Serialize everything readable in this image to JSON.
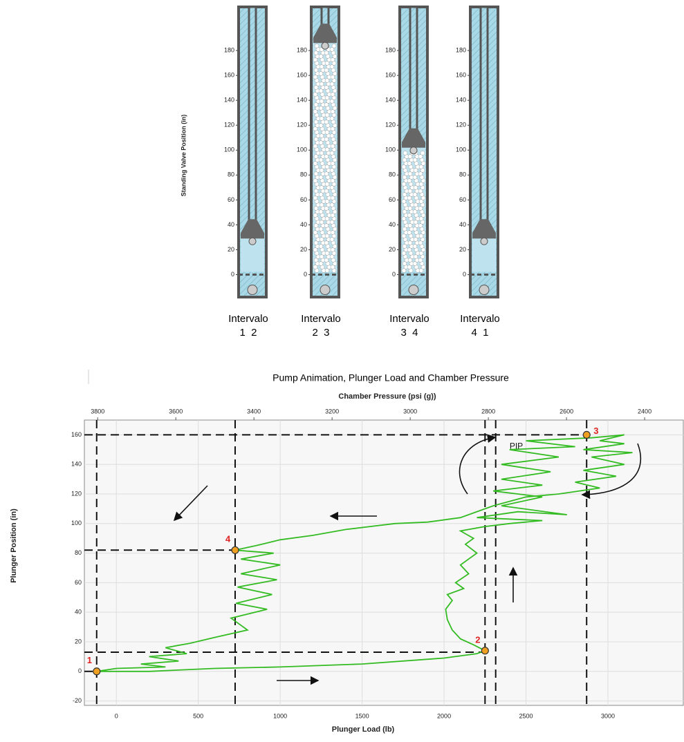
{
  "chart_data": [
    {
      "type": "pump",
      "y_label": "Standing Valve Position (in)",
      "ylim": [
        -18,
        215
      ],
      "yticks": [
        0,
        20,
        40,
        60,
        80,
        100,
        120,
        140,
        160,
        180
      ],
      "panels": [
        {
          "label": "Intervalo",
          "interval": "1  2",
          "plunger_position": 29,
          "gas": false
        },
        {
          "label": "Intervalo",
          "interval": "2  3",
          "plunger_position": 186,
          "gas": true
        },
        {
          "label": "Intervalo",
          "interval": "3  4",
          "plunger_position": 102,
          "gas": true
        },
        {
          "label": "Intervalo",
          "interval": "4  1",
          "plunger_position": 29,
          "gas": false
        }
      ]
    },
    {
      "type": "line",
      "title": "Pump Animation, Plunger Load and Chamber Pressure",
      "x_label": "Plunger Load (lb)",
      "x2_label": "Chamber Pressure (psi (g))",
      "y_label": "Plunger Position (in)",
      "xlim": [
        -195,
        3460
      ],
      "xticks": [
        0,
        500,
        1000,
        1500,
        2000,
        2500,
        3000
      ],
      "x2lim": [
        3834,
        2301
      ],
      "x2ticks": [
        3800,
        3600,
        3400,
        3200,
        3000,
        2800,
        2600,
        2400
      ],
      "ylim": [
        -23,
        170
      ],
      "yticks": [
        -20,
        0,
        20,
        40,
        60,
        80,
        100,
        120,
        140,
        160
      ],
      "grid": true,
      "series": [
        {
          "color": "#33bb22",
          "x": [
            -100,
            200,
            400,
            600,
            1000,
            1500,
            2000,
            2200,
            2250,
            2180,
            2100,
            2050,
            2020,
            2010,
            2050,
            2020,
            2120,
            2070,
            2150,
            2100,
            2200,
            2130,
            2180,
            2100,
            2250,
            2400,
            2600,
            2200,
            2450,
            2750,
            2350,
            2600,
            2300,
            2600,
            2350,
            2650,
            2350,
            2700,
            2400,
            2800,
            2500,
            2900,
            3100,
            2950,
            3100,
            2850,
            3150,
            2900,
            3100,
            2850,
            3050,
            2800,
            2950,
            2700,
            2500,
            2300,
            2100,
            1900,
            1700,
            1400,
            1200,
            1000,
            850,
            725,
            960,
            760,
            1000,
            760,
            980,
            740,
            950,
            730,
            920,
            700,
            800,
            600,
            450,
            300,
            430,
            200,
            380,
            150,
            300,
            0,
            -120
          ],
          "values": [
            0,
            0,
            1,
            2,
            3,
            5,
            9,
            12,
            14,
            18,
            22,
            28,
            35,
            42,
            48,
            52,
            56,
            60,
            66,
            72,
            80,
            86,
            90,
            95,
            98,
            100,
            102,
            104,
            108,
            106,
            112,
            118,
            122,
            126,
            130,
            135,
            140,
            145,
            150,
            152,
            156,
            158,
            160,
            156,
            154,
            150,
            148,
            145,
            140,
            136,
            132,
            128,
            124,
            120,
            118,
            112,
            104,
            101,
            100,
            96,
            92,
            89,
            85,
            82,
            80,
            76,
            72,
            66,
            62,
            57,
            52,
            46,
            42,
            36,
            28,
            23,
            19,
            16,
            12,
            10,
            7,
            5,
            3,
            2,
            0
          ]
        }
      ],
      "points": {
        "labels": [
          "1",
          "2",
          "3",
          "4"
        ],
        "x": [
          -120,
          2250,
          2870,
          725
        ],
        "values": [
          0,
          14,
          160,
          82
        ],
        "color": "#f0a020",
        "label_color": "#e02020"
      },
      "vlines": [
        -120,
        725,
        2250,
        2315,
        2870
      ],
      "hlines": [
        {
          "y": 0,
          "x_end": -120
        },
        {
          "y": 13,
          "x_end": 2250
        },
        {
          "y": 82,
          "x_end": 725
        },
        {
          "y": 160,
          "x_end": 2870
        }
      ],
      "annotations": [
        {
          "text": "PIP",
          "x": 2400,
          "y": 152
        }
      ]
    }
  ]
}
